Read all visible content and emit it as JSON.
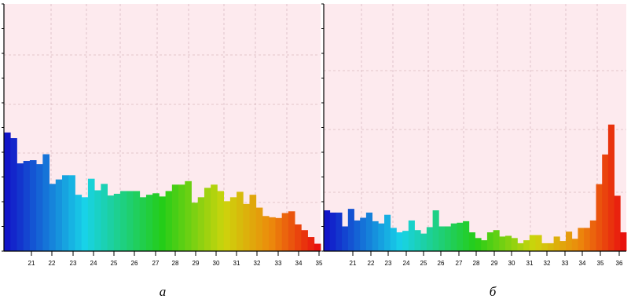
{
  "chart_data": [
    {
      "type": "bar",
      "caption": "а",
      "ylim": [
        0,
        100
      ],
      "grid": true,
      "x_ticks": [
        "21",
        "22",
        "23",
        "24",
        "25",
        "26",
        "27",
        "28",
        "29",
        "30",
        "31",
        "32",
        "33",
        "34",
        "35"
      ],
      "bins": [
        {
          "x": 20.0,
          "v": 48.0
        },
        {
          "x": 20.3,
          "v": 45.7
        },
        {
          "x": 20.6,
          "v": 35.5
        },
        {
          "x": 20.9,
          "v": 36.5
        },
        {
          "x": 21.2,
          "v": 36.8
        },
        {
          "x": 21.5,
          "v": 35.2
        },
        {
          "x": 21.8,
          "v": 39.2
        },
        {
          "x": 22.1,
          "v": 27.2
        },
        {
          "x": 22.4,
          "v": 29.0
        },
        {
          "x": 22.7,
          "v": 30.7
        },
        {
          "x": 23.0,
          "v": 30.7
        },
        {
          "x": 23.3,
          "v": 22.8
        },
        {
          "x": 23.6,
          "v": 21.8
        },
        {
          "x": 23.9,
          "v": 29.3
        },
        {
          "x": 24.2,
          "v": 24.6
        },
        {
          "x": 24.5,
          "v": 27.2
        },
        {
          "x": 24.8,
          "v": 22.5
        },
        {
          "x": 25.1,
          "v": 23.2
        },
        {
          "x": 25.4,
          "v": 24.3
        },
        {
          "x": 25.7,
          "v": 24.3
        },
        {
          "x": 26.0,
          "v": 24.3
        },
        {
          "x": 26.3,
          "v": 21.8
        },
        {
          "x": 26.6,
          "v": 22.8
        },
        {
          "x": 26.9,
          "v": 23.4
        },
        {
          "x": 27.2,
          "v": 22.1
        },
        {
          "x": 27.5,
          "v": 24.3
        },
        {
          "x": 27.8,
          "v": 26.9
        },
        {
          "x": 28.1,
          "v": 26.9
        },
        {
          "x": 28.4,
          "v": 28.3
        },
        {
          "x": 28.7,
          "v": 19.6
        },
        {
          "x": 29.0,
          "v": 21.8
        },
        {
          "x": 29.3,
          "v": 25.6
        },
        {
          "x": 29.6,
          "v": 26.9
        },
        {
          "x": 29.9,
          "v": 24.3
        },
        {
          "x": 30.2,
          "v": 20.2
        },
        {
          "x": 30.5,
          "v": 21.8
        },
        {
          "x": 30.8,
          "v": 24.0
        },
        {
          "x": 31.1,
          "v": 19.1
        },
        {
          "x": 31.4,
          "v": 22.8
        },
        {
          "x": 31.7,
          "v": 17.6
        },
        {
          "x": 32.0,
          "v": 14.2
        },
        {
          "x": 32.3,
          "v": 13.7
        },
        {
          "x": 32.6,
          "v": 13.4
        },
        {
          "x": 32.9,
          "v": 15.4
        },
        {
          "x": 33.2,
          "v": 16.1
        },
        {
          "x": 33.5,
          "v": 10.8
        },
        {
          "x": 33.8,
          "v": 8.5
        },
        {
          "x": 34.1,
          "v": 5.7
        },
        {
          "x": 34.4,
          "v": 3.0
        }
      ]
    },
    {
      "type": "bar",
      "caption": "б",
      "ylim": [
        0,
        100
      ],
      "grid": true,
      "x_ticks": [
        "21",
        "22",
        "23",
        "24",
        "25",
        "26",
        "27",
        "28",
        "29",
        "30",
        "31",
        "32",
        "33",
        "34",
        "35",
        "36"
      ],
      "bins": [
        {
          "x": 20.0,
          "v": 16.5
        },
        {
          "x": 20.3,
          "v": 15.6
        },
        {
          "x": 20.6,
          "v": 15.6
        },
        {
          "x": 20.9,
          "v": 10.0
        },
        {
          "x": 21.2,
          "v": 17.1
        },
        {
          "x": 21.5,
          "v": 12.4
        },
        {
          "x": 21.8,
          "v": 13.5
        },
        {
          "x": 22.1,
          "v": 15.6
        },
        {
          "x": 22.4,
          "v": 12.1
        },
        {
          "x": 22.7,
          "v": 11.2
        },
        {
          "x": 23.0,
          "v": 14.7
        },
        {
          "x": 23.3,
          "v": 9.4
        },
        {
          "x": 23.6,
          "v": 7.6
        },
        {
          "x": 23.9,
          "v": 8.2
        },
        {
          "x": 24.2,
          "v": 12.4
        },
        {
          "x": 24.5,
          "v": 8.5
        },
        {
          "x": 24.8,
          "v": 7.1
        },
        {
          "x": 25.1,
          "v": 9.7
        },
        {
          "x": 25.4,
          "v": 16.5
        },
        {
          "x": 25.7,
          "v": 10.0
        },
        {
          "x": 26.0,
          "v": 10.0
        },
        {
          "x": 26.3,
          "v": 11.2
        },
        {
          "x": 26.6,
          "v": 11.5
        },
        {
          "x": 26.9,
          "v": 12.1
        },
        {
          "x": 27.2,
          "v": 7.6
        },
        {
          "x": 27.5,
          "v": 5.3
        },
        {
          "x": 27.8,
          "v": 4.4
        },
        {
          "x": 28.1,
          "v": 7.6
        },
        {
          "x": 28.4,
          "v": 8.5
        },
        {
          "x": 28.7,
          "v": 5.9
        },
        {
          "x": 29.0,
          "v": 6.2
        },
        {
          "x": 29.3,
          "v": 5.3
        },
        {
          "x": 29.6,
          "v": 3.2
        },
        {
          "x": 29.9,
          "v": 4.4
        },
        {
          "x": 30.2,
          "v": 6.5
        },
        {
          "x": 30.5,
          "v": 6.5
        },
        {
          "x": 30.8,
          "v": 3.2
        },
        {
          "x": 31.1,
          "v": 3.2
        },
        {
          "x": 31.4,
          "v": 5.9
        },
        {
          "x": 31.7,
          "v": 4.1
        },
        {
          "x": 32.0,
          "v": 7.9
        },
        {
          "x": 32.3,
          "v": 5.0
        },
        {
          "x": 32.6,
          "v": 9.4
        },
        {
          "x": 32.9,
          "v": 9.4
        },
        {
          "x": 33.2,
          "v": 12.4
        },
        {
          "x": 33.5,
          "v": 27.1
        },
        {
          "x": 33.8,
          "v": 39.1
        },
        {
          "x": 34.1,
          "v": 51.2
        },
        {
          "x": 34.4,
          "v": 22.4
        },
        {
          "x": 34.7,
          "v": 7.6
        }
      ]
    }
  ]
}
